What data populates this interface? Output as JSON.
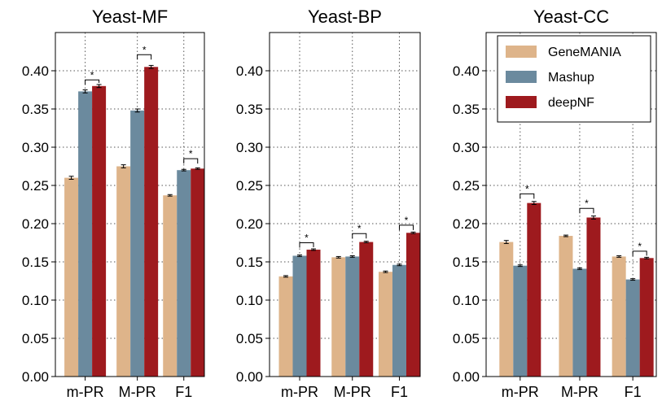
{
  "chart_data": [
    {
      "type": "bar",
      "title": "Yeast-MF",
      "categories": [
        "m-PR",
        "M-PR",
        "F1"
      ],
      "ylim": [
        0,
        0.45
      ],
      "yticks": [
        "0.00",
        "0.05",
        "0.10",
        "0.15",
        "0.20",
        "0.25",
        "0.30",
        "0.35",
        "0.40"
      ],
      "grid": true,
      "series": [
        {
          "name": "GeneMANIA",
          "values": [
            0.26,
            0.275,
            0.237
          ],
          "errors": [
            0.002,
            0.002,
            0.001
          ]
        },
        {
          "name": "Mashup",
          "values": [
            0.373,
            0.348,
            0.27
          ],
          "errors": [
            0.002,
            0.002,
            0.001
          ]
        },
        {
          "name": "deepNF",
          "values": [
            0.38,
            0.405,
            0.272
          ],
          "errors": [
            0.002,
            0.002,
            0.001
          ]
        }
      ],
      "significance": [
        {
          "category": "m-PR",
          "label": "*",
          "level": 0.388
        },
        {
          "category": "M-PR",
          "label": "*",
          "level": 0.421
        },
        {
          "category": "F1",
          "label": "*",
          "level": 0.285
        }
      ]
    },
    {
      "type": "bar",
      "title": "Yeast-BP",
      "categories": [
        "m-PR",
        "M-PR",
        "F1"
      ],
      "ylim": [
        0,
        0.45
      ],
      "yticks": [
        "0.00",
        "0.05",
        "0.10",
        "0.15",
        "0.20",
        "0.25",
        "0.30",
        "0.35",
        "0.40"
      ],
      "grid": true,
      "series": [
        {
          "name": "GeneMANIA",
          "values": [
            0.131,
            0.156,
            0.137
          ],
          "errors": [
            0.001,
            0.001,
            0.001
          ]
        },
        {
          "name": "Mashup",
          "values": [
            0.158,
            0.157,
            0.146
          ],
          "errors": [
            0.001,
            0.001,
            0.001
          ]
        },
        {
          "name": "deepNF",
          "values": [
            0.166,
            0.176,
            0.188
          ],
          "errors": [
            0.001,
            0.001,
            0.001
          ]
        }
      ],
      "significance": [
        {
          "category": "m-PR",
          "label": "*",
          "level": 0.175
        },
        {
          "category": "M-PR",
          "label": "*",
          "level": 0.187
        },
        {
          "category": "F1",
          "label": "*",
          "level": 0.198
        }
      ]
    },
    {
      "type": "bar",
      "title": "Yeast-CC",
      "categories": [
        "m-PR",
        "M-PR",
        "F1"
      ],
      "ylim": [
        0,
        0.45
      ],
      "yticks": [
        "0.00",
        "0.05",
        "0.10",
        "0.15",
        "0.20",
        "0.25",
        "0.30",
        "0.35",
        "0.40"
      ],
      "grid": true,
      "legend": "top-right",
      "series": [
        {
          "name": "GeneMANIA",
          "values": [
            0.176,
            0.184,
            0.157
          ],
          "errors": [
            0.002,
            0.001,
            0.001
          ]
        },
        {
          "name": "Mashup",
          "values": [
            0.145,
            0.141,
            0.127
          ],
          "errors": [
            0.001,
            0.001,
            0.001
          ]
        },
        {
          "name": "deepNF",
          "values": [
            0.227,
            0.208,
            0.155
          ],
          "errors": [
            0.002,
            0.002,
            0.001
          ]
        }
      ],
      "significance": [
        {
          "category": "m-PR",
          "label": "*",
          "level": 0.239
        },
        {
          "category": "M-PR",
          "label": "*",
          "level": 0.22
        },
        {
          "category": "F1",
          "label": "*",
          "level": 0.164
        }
      ]
    }
  ],
  "colors": {
    "GeneMANIA": "#deb48a",
    "Mashup": "#6b8a9e",
    "deepNF": "#9e1a1e"
  }
}
